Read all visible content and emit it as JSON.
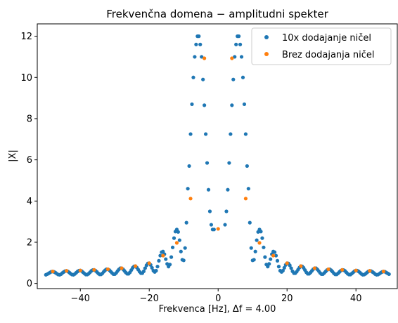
{
  "chart_data": {
    "type": "scatter",
    "title": "Frekvenčna domena − amplitudni spekter",
    "xlabel": "Frekvenca [Hz], Δf = 4.00",
    "ylabel": "|X|",
    "xlim": [
      -52.5,
      52
    ],
    "ylim": [
      -0.25,
      12.6
    ],
    "xticks": [
      -40,
      -20,
      0,
      20,
      40
    ],
    "xtick_labels": [
      "−40",
      "−20",
      "0",
      "20",
      "40"
    ],
    "yticks": [
      0,
      2,
      4,
      6,
      8,
      10,
      12
    ],
    "ytick_labels": [
      "0",
      "2",
      "4",
      "6",
      "8",
      "10",
      "12"
    ],
    "grid": false,
    "legend_position": "top-right",
    "series": [
      {
        "name": "10x dodajanje ničel",
        "color": "#1f77b4",
        "points": [
          [
            -50.0,
            0.42
          ],
          [
            -49.6,
            0.45
          ],
          [
            -49.2,
            0.49
          ],
          [
            -48.8,
            0.53
          ],
          [
            -48.4,
            0.57
          ],
          [
            -48.0,
            0.58
          ],
          [
            -47.6,
            0.56
          ],
          [
            -47.2,
            0.52
          ],
          [
            -46.8,
            0.47
          ],
          [
            -46.4,
            0.43
          ],
          [
            -46.0,
            0.42
          ],
          [
            -45.6,
            0.45
          ],
          [
            -45.2,
            0.51
          ],
          [
            -44.8,
            0.56
          ],
          [
            -44.4,
            0.6
          ],
          [
            -44.0,
            0.61
          ],
          [
            -43.6,
            0.58
          ],
          [
            -43.2,
            0.53
          ],
          [
            -42.8,
            0.47
          ],
          [
            -42.4,
            0.43
          ],
          [
            -42.0,
            0.42
          ],
          [
            -41.6,
            0.46
          ],
          [
            -41.2,
            0.52
          ],
          [
            -40.8,
            0.58
          ],
          [
            -40.4,
            0.62
          ],
          [
            -40.0,
            0.63
          ],
          [
            -39.6,
            0.6
          ],
          [
            -39.2,
            0.54
          ],
          [
            -38.8,
            0.48
          ],
          [
            -38.4,
            0.43
          ],
          [
            -38.0,
            0.43
          ],
          [
            -37.6,
            0.47
          ],
          [
            -37.2,
            0.54
          ],
          [
            -36.8,
            0.61
          ],
          [
            -36.4,
            0.65
          ],
          [
            -36.0,
            0.66
          ],
          [
            -35.6,
            0.62
          ],
          [
            -35.2,
            0.56
          ],
          [
            -34.8,
            0.49
          ],
          [
            -34.4,
            0.44
          ],
          [
            -34.0,
            0.44
          ],
          [
            -33.6,
            0.49
          ],
          [
            -33.2,
            0.57
          ],
          [
            -32.8,
            0.64
          ],
          [
            -32.4,
            0.69
          ],
          [
            -32.0,
            0.69
          ],
          [
            -31.6,
            0.65
          ],
          [
            -31.2,
            0.58
          ],
          [
            -30.8,
            0.51
          ],
          [
            -30.4,
            0.45
          ],
          [
            -30.0,
            0.45
          ],
          [
            -29.6,
            0.51
          ],
          [
            -29.2,
            0.6
          ],
          [
            -28.8,
            0.68
          ],
          [
            -28.4,
            0.74
          ],
          [
            -28.0,
            0.74
          ],
          [
            -27.6,
            0.69
          ],
          [
            -27.2,
            0.61
          ],
          [
            -26.8,
            0.53
          ],
          [
            -26.4,
            0.47
          ],
          [
            -26.0,
            0.47
          ],
          [
            -25.6,
            0.54
          ],
          [
            -25.2,
            0.65
          ],
          [
            -24.8,
            0.76
          ],
          [
            -24.4,
            0.83
          ],
          [
            -24.0,
            0.84
          ],
          [
            -23.6,
            0.77
          ],
          [
            -23.2,
            0.67
          ],
          [
            -22.8,
            0.57
          ],
          [
            -22.4,
            0.5
          ],
          [
            -22.0,
            0.5
          ],
          [
            -21.6,
            0.59
          ],
          [
            -21.2,
            0.74
          ],
          [
            -20.8,
            0.88
          ],
          [
            -20.4,
            0.97
          ],
          [
            -20.0,
            0.98
          ],
          [
            -19.6,
            0.9
          ],
          [
            -19.2,
            0.76
          ],
          [
            -18.8,
            0.62
          ],
          [
            -18.4,
            0.56
          ],
          [
            -18.0,
            0.62
          ],
          [
            -17.6,
            0.82
          ],
          [
            -17.2,
            1.1
          ],
          [
            -16.8,
            1.35
          ],
          [
            -16.4,
            1.52
          ],
          [
            -16.0,
            1.55
          ],
          [
            -15.6,
            1.42
          ],
          [
            -15.2,
            1.18
          ],
          [
            -14.8,
            0.95
          ],
          [
            -14.4,
            0.82
          ],
          [
            -14.0,
            0.92
          ],
          [
            -13.6,
            1.28
          ],
          [
            -13.2,
            1.75
          ],
          [
            -12.8,
            2.2
          ],
          [
            -12.4,
            2.52
          ],
          [
            -12.0,
            2.62
          ],
          [
            -11.6,
            2.5
          ],
          [
            -11.2,
            2.1
          ],
          [
            -10.8,
            1.55
          ],
          [
            -10.4,
            1.15
          ],
          [
            -10.0,
            1.12
          ],
          [
            -9.6,
            1.72
          ],
          [
            -9.2,
            2.95
          ],
          [
            -8.8,
            4.6
          ],
          [
            -8.4,
            5.7
          ],
          [
            -8.0,
            7.25
          ],
          [
            -7.6,
            8.7
          ],
          [
            -7.2,
            10.0
          ],
          [
            -6.8,
            11.0
          ],
          [
            -6.4,
            11.6
          ],
          [
            -6.0,
            12.0
          ],
          [
            -5.6,
            12.0
          ],
          [
            -5.2,
            11.6
          ],
          [
            -4.8,
            11.0
          ],
          [
            -4.4,
            9.9
          ],
          [
            -4.0,
            8.65
          ],
          [
            -3.6,
            7.25
          ],
          [
            -3.2,
            5.85
          ],
          [
            -2.8,
            4.55
          ],
          [
            -2.4,
            3.5
          ],
          [
            -2.0,
            2.85
          ],
          [
            -1.6,
            2.62
          ],
          [
            -1.2,
            2.62
          ],
          [
            2.0,
            2.85
          ],
          [
            2.4,
            3.5
          ],
          [
            2.8,
            4.55
          ],
          [
            3.2,
            5.85
          ],
          [
            3.6,
            7.25
          ],
          [
            4.0,
            8.65
          ],
          [
            4.4,
            9.9
          ],
          [
            4.8,
            11.0
          ],
          [
            5.2,
            11.6
          ],
          [
            5.6,
            12.0
          ],
          [
            6.0,
            12.0
          ],
          [
            6.4,
            11.6
          ],
          [
            6.8,
            11.0
          ],
          [
            7.2,
            10.0
          ],
          [
            7.6,
            8.7
          ],
          [
            8.0,
            7.25
          ],
          [
            8.4,
            5.7
          ],
          [
            8.8,
            4.6
          ],
          [
            9.2,
            2.95
          ],
          [
            9.6,
            1.72
          ],
          [
            10.0,
            1.12
          ],
          [
            10.4,
            1.15
          ],
          [
            10.8,
            1.55
          ],
          [
            11.2,
            2.1
          ],
          [
            11.6,
            2.5
          ],
          [
            12.0,
            2.62
          ],
          [
            12.4,
            2.52
          ],
          [
            12.8,
            2.2
          ],
          [
            13.2,
            1.75
          ],
          [
            13.6,
            1.28
          ],
          [
            14.0,
            0.92
          ],
          [
            14.4,
            0.82
          ],
          [
            14.8,
            0.95
          ],
          [
            15.2,
            1.18
          ],
          [
            15.6,
            1.42
          ],
          [
            16.0,
            1.55
          ],
          [
            16.4,
            1.52
          ],
          [
            16.8,
            1.35
          ],
          [
            17.2,
            1.1
          ],
          [
            17.6,
            0.82
          ],
          [
            18.0,
            0.62
          ],
          [
            18.4,
            0.56
          ],
          [
            18.8,
            0.62
          ],
          [
            19.2,
            0.76
          ],
          [
            19.6,
            0.9
          ],
          [
            20.0,
            0.98
          ],
          [
            20.4,
            0.97
          ],
          [
            20.8,
            0.88
          ],
          [
            21.2,
            0.74
          ],
          [
            21.6,
            0.59
          ],
          [
            22.0,
            0.5
          ],
          [
            22.4,
            0.5
          ],
          [
            22.8,
            0.57
          ],
          [
            23.2,
            0.67
          ],
          [
            23.6,
            0.77
          ],
          [
            24.0,
            0.84
          ],
          [
            24.4,
            0.83
          ],
          [
            24.8,
            0.76
          ],
          [
            25.2,
            0.65
          ],
          [
            25.6,
            0.54
          ],
          [
            26.0,
            0.47
          ],
          [
            26.4,
            0.47
          ],
          [
            26.8,
            0.53
          ],
          [
            27.2,
            0.61
          ],
          [
            27.6,
            0.69
          ],
          [
            28.0,
            0.74
          ],
          [
            28.4,
            0.74
          ],
          [
            28.8,
            0.68
          ],
          [
            29.2,
            0.6
          ],
          [
            29.6,
            0.51
          ],
          [
            30.0,
            0.45
          ],
          [
            30.4,
            0.45
          ],
          [
            30.8,
            0.51
          ],
          [
            31.2,
            0.58
          ],
          [
            31.6,
            0.65
          ],
          [
            32.0,
            0.69
          ],
          [
            32.4,
            0.69
          ],
          [
            32.8,
            0.64
          ],
          [
            33.2,
            0.57
          ],
          [
            33.6,
            0.49
          ],
          [
            34.0,
            0.44
          ],
          [
            34.4,
            0.44
          ],
          [
            34.8,
            0.49
          ],
          [
            35.2,
            0.56
          ],
          [
            35.6,
            0.62
          ],
          [
            36.0,
            0.66
          ],
          [
            36.4,
            0.65
          ],
          [
            36.8,
            0.61
          ],
          [
            37.2,
            0.54
          ],
          [
            37.6,
            0.47
          ],
          [
            38.0,
            0.43
          ],
          [
            38.4,
            0.43
          ],
          [
            38.8,
            0.48
          ],
          [
            39.2,
            0.54
          ],
          [
            39.6,
            0.6
          ],
          [
            40.0,
            0.63
          ],
          [
            40.4,
            0.62
          ],
          [
            40.8,
            0.58
          ],
          [
            41.2,
            0.52
          ],
          [
            41.6,
            0.46
          ],
          [
            42.0,
            0.42
          ],
          [
            42.4,
            0.43
          ],
          [
            42.8,
            0.47
          ],
          [
            43.2,
            0.53
          ],
          [
            43.6,
            0.58
          ],
          [
            44.0,
            0.61
          ],
          [
            44.4,
            0.6
          ],
          [
            44.8,
            0.56
          ],
          [
            45.2,
            0.51
          ],
          [
            45.6,
            0.45
          ],
          [
            46.0,
            0.42
          ],
          [
            46.4,
            0.43
          ],
          [
            46.8,
            0.47
          ],
          [
            47.2,
            0.52
          ],
          [
            47.6,
            0.56
          ],
          [
            48.0,
            0.58
          ],
          [
            48.4,
            0.57
          ],
          [
            48.8,
            0.53
          ],
          [
            49.2,
            0.49
          ],
          [
            49.6,
            0.45
          ]
        ]
      },
      {
        "name": "Brez dodajanja ničel",
        "color": "#ff7f0e",
        "points": [
          [
            -48,
            0.58
          ],
          [
            -44,
            0.61
          ],
          [
            -40,
            0.63
          ],
          [
            -36,
            0.66
          ],
          [
            -32,
            0.69
          ],
          [
            -28,
            0.74
          ],
          [
            -24,
            0.84
          ],
          [
            -20,
            0.98
          ],
          [
            -16,
            1.35
          ],
          [
            -12,
            1.97
          ],
          [
            -8,
            4.12
          ],
          [
            -4,
            10.93
          ],
          [
            0,
            2.65
          ],
          [
            4,
            10.93
          ],
          [
            8,
            4.12
          ],
          [
            12,
            1.97
          ],
          [
            16,
            1.35
          ],
          [
            20,
            0.98
          ],
          [
            24,
            0.84
          ],
          [
            28,
            0.74
          ],
          [
            32,
            0.69
          ],
          [
            36,
            0.66
          ],
          [
            40,
            0.63
          ],
          [
            44,
            0.61
          ],
          [
            48,
            0.58
          ]
        ]
      }
    ]
  }
}
